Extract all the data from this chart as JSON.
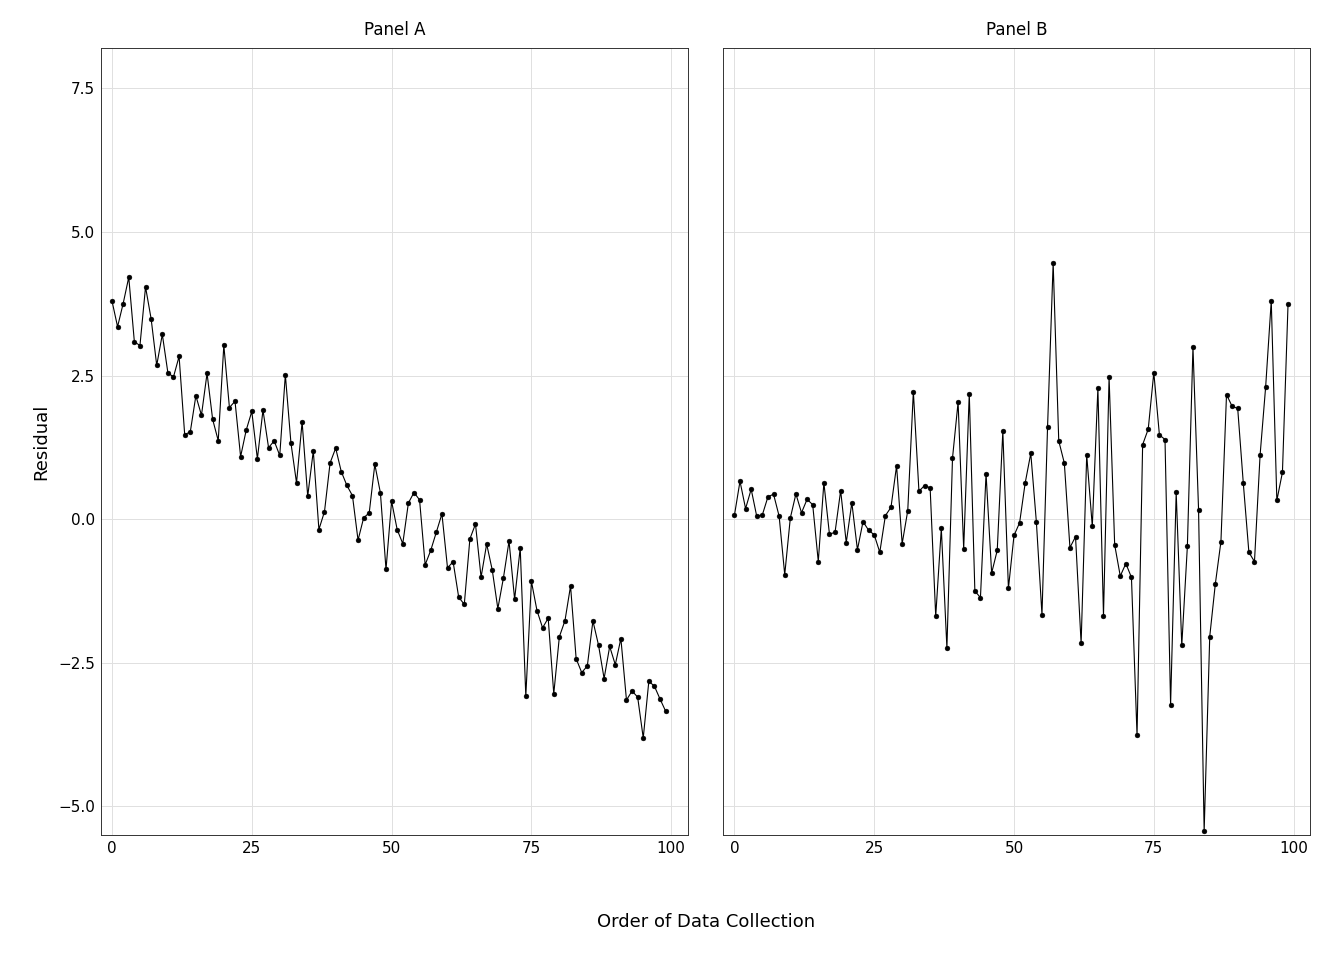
{
  "panel_a_title": "Panel A",
  "panel_b_title": "Panel B",
  "xlabel": "Order of Data Collection",
  "ylabel": "Residual",
  "ylim": [
    -5.5,
    8.2
  ],
  "yticks": [
    -5.0,
    -2.5,
    0.0,
    2.5,
    5.0,
    7.5
  ],
  "xlim": [
    -2,
    103
  ],
  "xticks": [
    0,
    25,
    50,
    75,
    100
  ],
  "n": 100,
  "background_color": "#ffffff",
  "panel_header_color": "#d9d9d9",
  "grid_color": "#e0e0e0",
  "plot_bg_color": "#ffffff",
  "outer_bg_color": "#ffffff",
  "line_color": "#000000",
  "marker_color": "#000000",
  "marker_size": 3.5,
  "line_width": 0.8,
  "title_fontsize": 12,
  "axis_fontsize": 13,
  "tick_fontsize": 11,
  "spine_color": "#333333"
}
